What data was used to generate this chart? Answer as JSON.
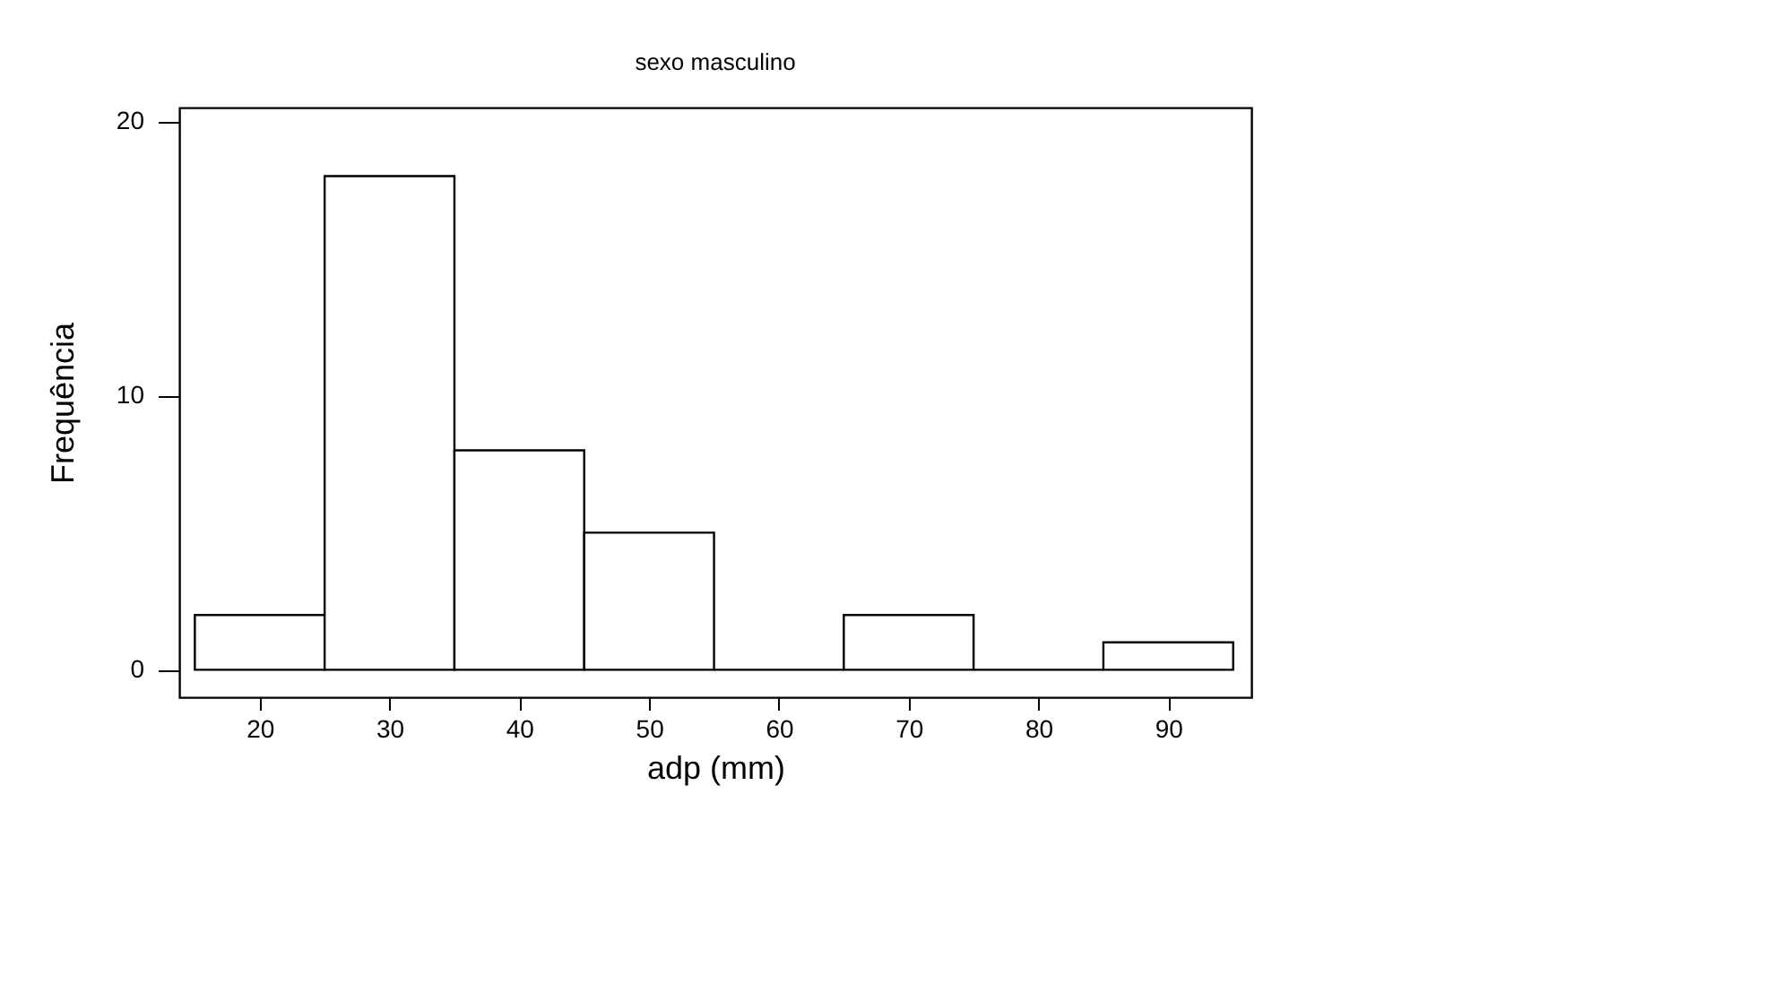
{
  "chart_data": {
    "type": "histogram",
    "title": "sexo masculino",
    "xlabel": "adp (mm)",
    "ylabel": "Frequência",
    "bins": [
      15,
      25,
      35,
      45,
      55,
      65,
      75,
      85,
      95
    ],
    "values": [
      2,
      18,
      8,
      5,
      0,
      2,
      0,
      1
    ],
    "xlim": [
      13.8,
      96.4
    ],
    "ylim": [
      -1,
      20.5
    ],
    "xticks": [
      20,
      30,
      40,
      50,
      60,
      70,
      80,
      90
    ],
    "yticks": [
      0,
      10,
      20
    ],
    "grid": false
  }
}
